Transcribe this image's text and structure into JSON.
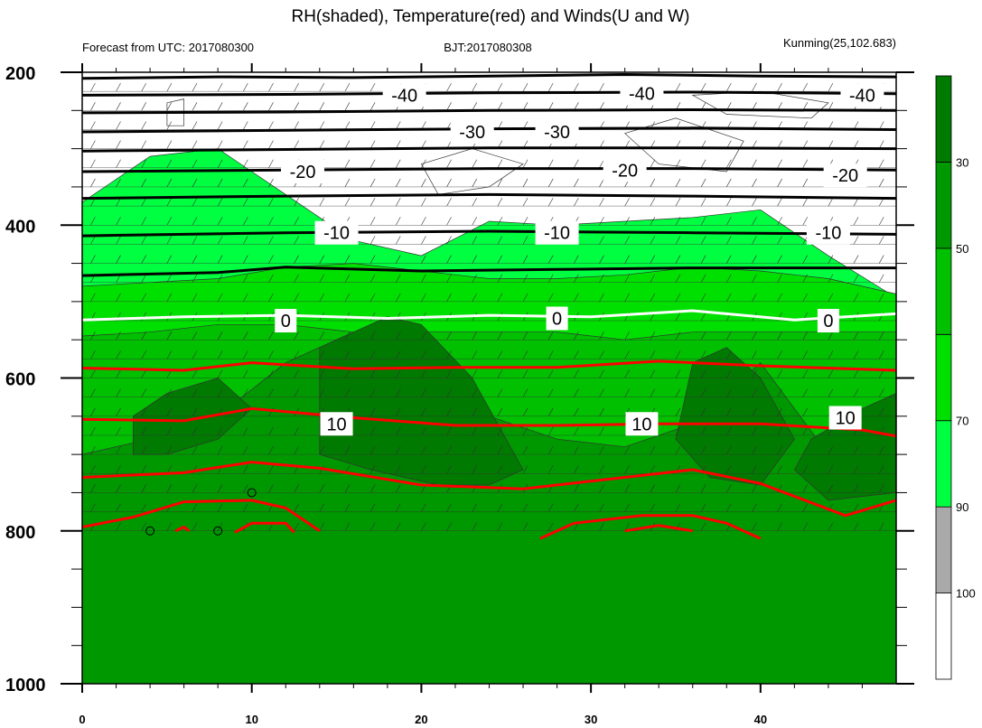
{
  "chart_data": {
    "type": "heatmap",
    "title": "RH(shaded), Temperature(red) and Winds(U and W)",
    "subtitle_left": "Forecast from UTC: 2017080300",
    "subtitle_center": "BJT:2017080308",
    "subtitle_right": "Kunming(25,102.683)",
    "xlabel": "",
    "ylabel": "",
    "xlim": [
      0,
      48
    ],
    "ylim": [
      1000,
      200
    ],
    "x_ticks": [
      {
        "value": 0,
        "label": "0"
      },
      {
        "value": 10,
        "label": "10"
      },
      {
        "value": 20,
        "label": "20"
      },
      {
        "value": 30,
        "label": "30"
      },
      {
        "value": 40,
        "label": "40"
      }
    ],
    "y_ticks": [
      {
        "value": 200,
        "label": "200"
      },
      {
        "value": 400,
        "label": "400"
      },
      {
        "value": 600,
        "label": "600"
      },
      {
        "value": 800,
        "label": "800"
      },
      {
        "value": 1000,
        "label": "1000"
      }
    ],
    "colorbar": {
      "colors": [
        "#ffffff",
        "#a9a9a9",
        "#00ff40",
        "#00e000",
        "#00c000",
        "#009800",
        "#007a00"
      ],
      "labels": [
        "30",
        "50",
        "70",
        "90",
        "100"
      ]
    },
    "rh_layers": [
      {
        "name": "white",
        "color": "#ffffff",
        "top": [
          1000,
          1000,
          1000,
          1000,
          1000,
          1000,
          1000,
          1000,
          1000,
          1000,
          1000,
          1000,
          1000
        ]
      },
      {
        "name": "gray",
        "color": "#a9a9a9",
        "top": [
          805,
          805,
          802,
          806,
          800,
          815,
          816,
          812,
          810,
          812,
          815,
          815,
          815
        ]
      },
      {
        "name": "light-green",
        "color": "#00ff40",
        "top": [
          370,
          310,
          300,
          360,
          420,
          440,
          395,
          400,
          395,
          390,
          380,
          440,
          495
        ]
      },
      {
        "name": "green",
        "color": "#00e000",
        "top": [
          480,
          475,
          470,
          455,
          450,
          460,
          470,
          470,
          465,
          455,
          460,
          470,
          490
        ]
      },
      {
        "name": "medium-green",
        "color": "#00c000",
        "top": [
          545,
          540,
          530,
          530,
          540,
          540,
          540,
          540,
          550,
          540,
          540,
          540,
          540
        ]
      },
      {
        "name": "dark-green",
        "color": "#009800",
        "top": [
          700,
          680,
          650,
          580,
          540,
          560,
          650,
          680,
          690,
          660,
          580,
          700,
          640
        ]
      }
    ],
    "rh_patches": [
      {
        "color": "#007a00",
        "x": [
          14,
          16,
          18,
          20,
          23,
          26,
          24,
          21,
          17,
          14
        ],
        "y": [
          560,
          540,
          520,
          530,
          600,
          720,
          740,
          740,
          720,
          700
        ]
      },
      {
        "color": "#007a00",
        "x": [
          3,
          5,
          8,
          10,
          8,
          5,
          3
        ],
        "y": [
          650,
          620,
          600,
          640,
          680,
          700,
          700
        ]
      },
      {
        "color": "#007a00",
        "x": [
          36,
          38,
          40,
          42,
          40,
          37,
          35
        ],
        "y": [
          580,
          560,
          600,
          680,
          740,
          730,
          680
        ]
      },
      {
        "color": "#007a00",
        "x": [
          43,
          46,
          48,
          48,
          44,
          42
        ],
        "y": [
          680,
          640,
          620,
          750,
          760,
          720
        ]
      },
      {
        "color": "#ffffff",
        "x": [
          20,
          23,
          26,
          24,
          21
        ],
        "y": [
          320,
          300,
          320,
          350,
          360
        ]
      },
      {
        "color": "#ffffff",
        "x": [
          32,
          35,
          39,
          38,
          34
        ],
        "y": [
          280,
          260,
          290,
          330,
          320
        ]
      },
      {
        "color": "#ffffff",
        "x": [
          5,
          6,
          6,
          5
        ],
        "y": [
          240,
          235,
          270,
          270
        ]
      },
      {
        "color": "#ffffff",
        "x": [
          36,
          40,
          44,
          43,
          38
        ],
        "y": [
          230,
          225,
          240,
          260,
          255
        ]
      }
    ],
    "temperature_isotherms": [
      {
        "label": "-40",
        "color": "#000000",
        "x": [
          0,
          8,
          16,
          24,
          32,
          40,
          48
        ],
        "y": [
          208,
          206,
          207,
          205,
          203,
          205,
          206
        ],
        "label_positions": [
          [
            19,
            230
          ],
          [
            33,
            228
          ],
          [
            46,
            230
          ]
        ]
      },
      {
        "label": "",
        "color": "#000000",
        "x": [
          0,
          12,
          24,
          36,
          48
        ],
        "y": [
          230,
          229,
          227,
          226,
          228
        ],
        "label_positions": []
      },
      {
        "label": "",
        "color": "#000000",
        "x": [
          0,
          12,
          24,
          36,
          48
        ],
        "y": [
          253,
          252,
          250,
          249,
          250
        ],
        "label_positions": []
      },
      {
        "label": "-30",
        "color": "#000000",
        "x": [
          0,
          12,
          24,
          36,
          48
        ],
        "y": [
          278,
          276,
          274,
          273,
          275
        ],
        "label_positions": [
          [
            23,
            278
          ],
          [
            28,
            278
          ]
        ]
      },
      {
        "label": "",
        "color": "#000000",
        "x": [
          0,
          12,
          24,
          36,
          48
        ],
        "y": [
          303,
          301,
          299,
          299,
          300
        ],
        "label_positions": []
      },
      {
        "label": "-20",
        "color": "#000000",
        "x": [
          0,
          12,
          24,
          36,
          48
        ],
        "y": [
          330,
          328,
          326,
          326,
          328
        ],
        "label_positions": [
          [
            13,
            330
          ],
          [
            32,
            328
          ],
          [
            45,
            335
          ]
        ]
      },
      {
        "label": "",
        "color": "#000000",
        "x": [
          0,
          12,
          24,
          36,
          48
        ],
        "y": [
          365,
          362,
          360,
          362,
          365
        ],
        "label_positions": []
      },
      {
        "label": "-10",
        "color": "#000000",
        "x": [
          0,
          12,
          24,
          36,
          48
        ],
        "y": [
          414,
          410,
          408,
          410,
          412
        ],
        "label_positions": [
          [
            15,
            410
          ],
          [
            28,
            410
          ],
          [
            44,
            410
          ]
        ]
      },
      {
        "label": "",
        "color": "#000000",
        "x": [
          0,
          8,
          12,
          20,
          28,
          36,
          48
        ],
        "y": [
          466,
          462,
          455,
          460,
          458,
          456,
          456
        ],
        "label_positions": []
      },
      {
        "label": "0",
        "color": "#ffffff",
        "x": [
          0,
          6,
          12,
          18,
          24,
          30,
          36,
          42,
          48
        ],
        "y": [
          524,
          520,
          518,
          522,
          518,
          520,
          512,
          524,
          516
        ],
        "label_positions": [
          [
            12,
            525
          ],
          [
            28,
            522
          ],
          [
            44,
            525
          ]
        ]
      },
      {
        "label": "",
        "color": "#ff0000",
        "x": [
          0,
          6,
          10,
          16,
          22,
          28,
          34,
          40,
          48
        ],
        "y": [
          587,
          590,
          580,
          588,
          586,
          586,
          578,
          584,
          590
        ],
        "label_positions": []
      },
      {
        "label": "10",
        "color": "#ff0000",
        "x": [
          0,
          6,
          10,
          16,
          22,
          28,
          34,
          40,
          46,
          48
        ],
        "y": [
          654,
          656,
          640,
          652,
          662,
          662,
          660,
          660,
          668,
          676
        ],
        "label_positions": [
          [
            15,
            660
          ],
          [
            33,
            660
          ],
          [
            45,
            652
          ]
        ]
      },
      {
        "label": "",
        "color": "#ff0000",
        "x": [
          0,
          6,
          10,
          14,
          20,
          26,
          32,
          36,
          40,
          45,
          48
        ],
        "y": [
          730,
          724,
          710,
          718,
          740,
          745,
          730,
          720,
          738,
          780,
          760
        ],
        "label_positions": []
      },
      {
        "label": "",
        "color": "#ff0000",
        "x": [
          0,
          3,
          6,
          10,
          12,
          14
        ],
        "y": [
          795,
          782,
          762,
          760,
          770,
          800
        ],
        "label_positions": []
      },
      {
        "label": "",
        "color": "#ff0000",
        "x": [
          27,
          29,
          33,
          36,
          38,
          40
        ],
        "y": [
          810,
          790,
          780,
          780,
          790,
          810
        ],
        "label_positions": []
      },
      {
        "label": "",
        "color": "#ff0000",
        "x": [
          9,
          10,
          12,
          12.5
        ],
        "y": [
          802,
          790,
          790,
          802
        ],
        "label_positions": []
      },
      {
        "label": "",
        "color": "#ff0000",
        "x": [
          5.5,
          6,
          6.3
        ],
        "y": [
          800,
          795,
          800
        ],
        "label_positions": []
      },
      {
        "label": "",
        "color": "#ff0000",
        "x": [
          32,
          34,
          36
        ],
        "y": [
          800,
          793,
          800
        ],
        "label_positions": []
      }
    ],
    "calm_wind_points": [
      [
        4,
        800
      ],
      [
        8,
        800
      ],
      [
        10,
        750
      ]
    ],
    "wind_levels": [
      200,
      225,
      250,
      275,
      300,
      325,
      350,
      375,
      400,
      425,
      450,
      475,
      500,
      525,
      550,
      575,
      600,
      625,
      650,
      675,
      700,
      725,
      750,
      775,
      800
    ],
    "wind_times_step": 1.5
  }
}
